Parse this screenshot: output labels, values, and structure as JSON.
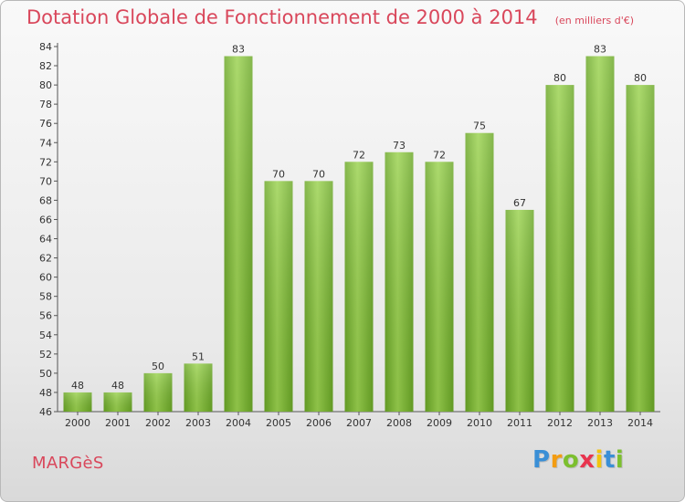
{
  "header": {
    "title": "Dotation Globale de Fonctionnement de 2000 à 2014",
    "unit": "(en milliers d'€)"
  },
  "footer": {
    "commune": "MARGèS",
    "brand": [
      "P",
      "r",
      "o",
      "x",
      "i",
      "t",
      "i"
    ],
    "brand_colors": [
      "#3a8fd6",
      "#f39c12",
      "#7cbf2f",
      "#e8344e",
      "#f1c40f",
      "#3a8fd6",
      "#7cbf2f"
    ]
  },
  "chart_data": {
    "type": "bar",
    "categories": [
      "2000",
      "2001",
      "2002",
      "2003",
      "2004",
      "2005",
      "2006",
      "2007",
      "2008",
      "2009",
      "2010",
      "2011",
      "2012",
      "2013",
      "2014"
    ],
    "values": [
      48,
      48,
      50,
      51,
      83,
      70,
      70,
      72,
      73,
      72,
      75,
      67,
      80,
      83,
      80
    ],
    "ylim": [
      46,
      84
    ],
    "yticks": [
      46,
      48,
      50,
      52,
      54,
      56,
      58,
      60,
      62,
      64,
      66,
      68,
      70,
      72,
      74,
      76,
      78,
      80,
      82,
      84
    ],
    "bar_color": "#7cbf2f",
    "grid": false
  }
}
